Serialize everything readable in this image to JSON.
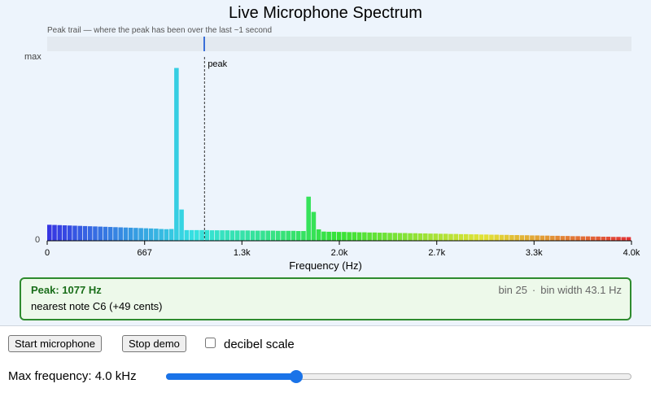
{
  "title": "Live Microphone Spectrum",
  "peak_trail": {
    "caption": "Peak trail — where the peak has been over the last ~1 second",
    "marker_hz": 1077
  },
  "y_axis": {
    "top_label": "max",
    "bottom_label": "0"
  },
  "chart_data": {
    "type": "bar",
    "xlabel": "Frequency (Hz)",
    "xlim": [
      0,
      4000
    ],
    "ylim": [
      0,
      1
    ],
    "x_ticks": [
      {
        "value": 0,
        "label": "0"
      },
      {
        "value": 667,
        "label": "667"
      },
      {
        "value": 1333,
        "label": "1.3k"
      },
      {
        "value": 2000,
        "label": "2.0k"
      },
      {
        "value": 2667,
        "label": "2.7k"
      },
      {
        "value": 3333,
        "label": "3.3k"
      },
      {
        "value": 4000,
        "label": "4.0k"
      }
    ],
    "bin_width_hz": 43.1,
    "values": [
      0.087,
      0.086,
      0.085,
      0.084,
      0.083,
      0.082,
      0.081,
      0.08,
      0.079,
      0.078,
      0.077,
      0.076,
      0.075,
      0.074,
      0.073,
      0.072,
      0.071,
      0.07,
      0.069,
      0.068,
      0.067,
      0.066,
      0.064,
      0.063,
      0.064,
      0.94,
      0.17,
      0.058,
      0.058,
      0.058,
      0.058,
      0.058,
      0.057,
      0.057,
      0.057,
      0.057,
      0.056,
      0.056,
      0.056,
      0.056,
      0.055,
      0.055,
      0.055,
      0.055,
      0.055,
      0.054,
      0.054,
      0.054,
      0.054,
      0.053,
      0.053,
      0.24,
      0.157,
      0.062,
      0.05,
      0.049,
      0.049,
      0.048,
      0.048,
      0.047,
      0.047,
      0.046,
      0.046,
      0.045,
      0.045,
      0.044,
      0.044,
      0.043,
      0.043,
      0.042,
      0.042,
      0.041,
      0.041,
      0.04,
      0.04,
      0.039,
      0.039,
      0.038,
      0.038,
      0.037,
      0.037,
      0.036,
      0.036,
      0.035,
      0.035,
      0.034,
      0.034,
      0.033,
      0.033,
      0.032,
      0.032,
      0.031,
      0.031,
      0.03,
      0.03,
      0.029,
      0.029,
      0.028,
      0.028,
      0.027,
      0.027,
      0.026,
      0.026,
      0.025,
      0.025,
      0.024,
      0.024,
      0.023,
      0.023,
      0.022,
      0.022,
      0.021,
      0.021,
      0.02,
      0.02
    ],
    "values_override_note": "",
    "peak_marker": {
      "x": 1077,
      "label": "peak"
    }
  },
  "peak": {
    "text": "Peak: 1077 Hz",
    "note": "nearest note C6 (+49 cents)",
    "bin": "bin 25",
    "bin_width": "bin width 43.1 Hz"
  },
  "controls": {
    "start_label": "Start microphone",
    "stop_label": "Stop demo",
    "db_label": "decibel scale",
    "db_checked": false,
    "max_freq_label": "Max frequency: 4.0 kHz",
    "max_freq_fraction": 0.28
  }
}
